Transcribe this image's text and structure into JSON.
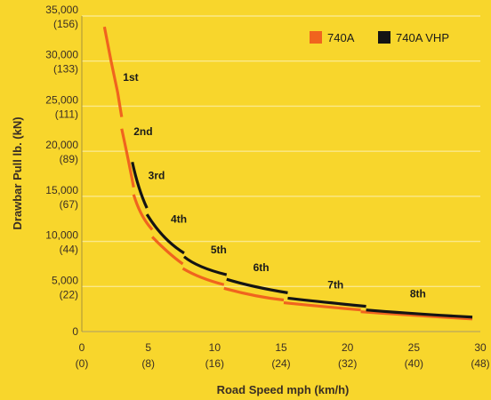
{
  "chart_data": {
    "type": "line",
    "xlabel": "Road Speed mph (km/h)",
    "ylabel": "Drawbar Pull lb. (kN)",
    "xlim": [
      0,
      30
    ],
    "ylim": [
      0,
      35000
    ],
    "grid": true,
    "legend_position": "top-right",
    "x_ticks": [
      {
        "value": 0,
        "label": "0",
        "sublabel": "(0)"
      },
      {
        "value": 5,
        "label": "5",
        "sublabel": "(8)"
      },
      {
        "value": 10,
        "label": "10",
        "sublabel": "(16)"
      },
      {
        "value": 15,
        "label": "15",
        "sublabel": "(24)"
      },
      {
        "value": 20,
        "label": "20",
        "sublabel": "(32)"
      },
      {
        "value": 25,
        "label": "25",
        "sublabel": "(40)"
      },
      {
        "value": 30,
        "label": "30",
        "sublabel": "(48)"
      }
    ],
    "y_ticks": [
      {
        "value": 0,
        "label": "0",
        "sublabel": ""
      },
      {
        "value": 5000,
        "label": "5,000",
        "sublabel": "(22)"
      },
      {
        "value": 10000,
        "label": "10,000",
        "sublabel": "(44)"
      },
      {
        "value": 15000,
        "label": "15,000",
        "sublabel": "(67)"
      },
      {
        "value": 20000,
        "label": "20,000",
        "sublabel": "(89)"
      },
      {
        "value": 25000,
        "label": "25,000",
        "sublabel": "(111)"
      },
      {
        "value": 30000,
        "label": "30,000",
        "sublabel": "(133)"
      },
      {
        "value": 35000,
        "label": "35,000",
        "sublabel": "(156)"
      }
    ],
    "series": [
      {
        "name": "740A",
        "color": "#f0641e",
        "segments": [
          [
            [
              1.7,
              33800
            ],
            [
              2.2,
              30000
            ],
            [
              2.7,
              26500
            ],
            [
              3.0,
              23800
            ]
          ],
          [
            [
              3.0,
              22500
            ],
            [
              3.5,
              19000
            ],
            [
              3.9,
              16000
            ]
          ],
          [
            [
              3.9,
              15200
            ],
            [
              4.5,
              13000
            ],
            [
              5.3,
              11300
            ]
          ],
          [
            [
              5.3,
              10500
            ],
            [
              6.5,
              8800
            ],
            [
              7.6,
              7500
            ]
          ],
          [
            [
              7.6,
              7000
            ],
            [
              9.0,
              6000
            ],
            [
              10.7,
              5200
            ]
          ],
          [
            [
              10.7,
              4800
            ],
            [
              13.0,
              4000
            ],
            [
              15.2,
              3500
            ]
          ],
          [
            [
              15.2,
              3200
            ],
            [
              18.0,
              2800
            ],
            [
              21.0,
              2400
            ]
          ],
          [
            [
              21.0,
              2200
            ],
            [
              25.0,
              1800
            ],
            [
              29.4,
              1400
            ]
          ]
        ]
      },
      {
        "name": "740A VHP",
        "color": "#141414",
        "segments": [
          [
            [
              3.8,
              18800
            ],
            [
              4.3,
              16000
            ],
            [
              4.9,
              13700
            ]
          ],
          [
            [
              4.9,
              13000
            ],
            [
              6.2,
              10500
            ],
            [
              7.7,
              8700
            ]
          ],
          [
            [
              7.7,
              8300
            ],
            [
              9.0,
              7200
            ],
            [
              10.9,
              6300
            ]
          ],
          [
            [
              10.9,
              5800
            ],
            [
              13.0,
              5000
            ],
            [
              15.5,
              4300
            ]
          ],
          [
            [
              15.5,
              3700
            ],
            [
              18.0,
              3300
            ],
            [
              21.4,
              2800
            ]
          ],
          [
            [
              21.4,
              2400
            ],
            [
              25.0,
              2000
            ],
            [
              29.4,
              1600
            ]
          ]
        ]
      }
    ],
    "annotations": [
      {
        "text": "1st",
        "x": 3.1,
        "y": 27800
      },
      {
        "text": "2nd",
        "x": 3.9,
        "y": 21800
      },
      {
        "text": "3rd",
        "x": 5.0,
        "y": 16900
      },
      {
        "text": "4th",
        "x": 6.7,
        "y": 12100
      },
      {
        "text": "5th",
        "x": 9.7,
        "y": 8700
      },
      {
        "text": "6th",
        "x": 12.9,
        "y": 6700
      },
      {
        "text": "7th",
        "x": 18.5,
        "y": 4800
      },
      {
        "text": "8th",
        "x": 24.7,
        "y": 3800
      }
    ]
  }
}
